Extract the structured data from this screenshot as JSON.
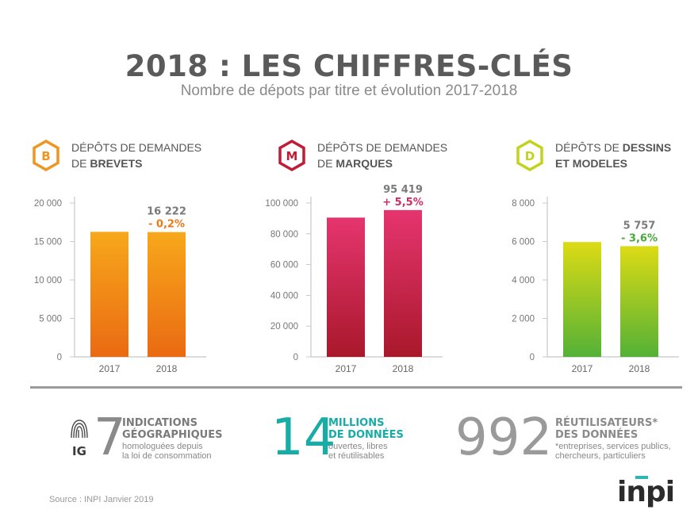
{
  "header": {
    "title": "2018 : LES CHIFFRES-CLÉS",
    "subtitle": "Nombre de dépots par titre et évolution 2017-2018"
  },
  "panels": [
    {
      "badge": "B",
      "line1_plain": "DÉPÔTS DE DEMANDES",
      "line2_plain": "DE ",
      "line2_bold": "BREVETS",
      "line1_bold": ""
    },
    {
      "badge": "M",
      "line1_plain": "DÉPÔTS DE DEMANDES",
      "line2_plain": "DE ",
      "line2_bold": "MARQUES",
      "line1_bold": ""
    },
    {
      "badge": "D",
      "line1_plain": "DÉPÔTS DE ",
      "line1_bold": "DESSINS",
      "line2_plain": "",
      "line2_bold": "ET MODELES"
    }
  ],
  "chart_data": [
    {
      "type": "bar",
      "categories": [
        "2017",
        "2018"
      ],
      "values": [
        16255,
        16222
      ],
      "ylim": [
        0,
        20000
      ],
      "yticks": [
        "0",
        "5 000",
        "10 000",
        "15 000",
        "20 000"
      ],
      "ytick_values": [
        0,
        5000,
        10000,
        15000,
        20000
      ],
      "value_label": "16 222",
      "change_label": "- 0,2%",
      "colors": {
        "top": "#f7a81b",
        "bottom": "#ea6a12",
        "change": "#ec7a17",
        "badge": "#f0951f"
      }
    },
    {
      "type": "bar",
      "categories": [
        "2017",
        "2018"
      ],
      "values": [
        90530,
        95419
      ],
      "ylim": [
        0,
        100000
      ],
      "yticks": [
        "0",
        "20 000",
        "40 000",
        "60 000",
        "80 000",
        "100 000"
      ],
      "ytick_values": [
        0,
        20000,
        40000,
        60000,
        80000,
        100000
      ],
      "value_label": "95 419",
      "change_label": "+ 5,5%",
      "colors": {
        "top": "#e5356f",
        "bottom": "#a9182b",
        "change": "#d62a66",
        "badge": "#c01c37"
      }
    },
    {
      "type": "bar",
      "categories": [
        "2017",
        "2018"
      ],
      "values": [
        5972,
        5757
      ],
      "ylim": [
        0,
        8000
      ],
      "yticks": [
        "0",
        "2 000",
        "4 000",
        "6 000",
        "8 000"
      ],
      "ytick_values": [
        0,
        2000,
        4000,
        6000,
        8000
      ],
      "value_label": "5 757",
      "change_label": "- 3,6%",
      "colors": {
        "top": "#dcdb14",
        "bottom": "#54b137",
        "change": "#46a83a",
        "badge": "#c3d31c"
      }
    }
  ],
  "stats": [
    {
      "number": "7",
      "title1": "INDICATIONS",
      "title2": "GÉOGRAPHIQUES",
      "sub1": "homologuées depuis",
      "sub2": "la loi de consommation",
      "sub3": "",
      "color": "#8a8a8a",
      "title_color": "#7a7a7a",
      "icon": "fingerprint-ig-icon",
      "icon_text": "IG"
    },
    {
      "number": "14",
      "title1": "MILLIONS",
      "title2": "DE DONNÉES",
      "sub1": "ouvertes, libres",
      "sub2": "et réutilisables",
      "sub3": "",
      "color": "#17aca5",
      "title_color": "#17aca5"
    },
    {
      "number": "992",
      "title1": "RÉUTILISATEURS*",
      "title2": "DES DONNÉES",
      "sub1": "*entreprises, services publics,",
      "sub2": "chercheurs, particuliers",
      "sub3": "",
      "color": "#9a9a9a",
      "title_color": "#8a8a8a"
    }
  ],
  "footer": {
    "source": "Source : INPI Janvier 2019",
    "logo": "inpi",
    "logo_color": "#2fb5b3"
  }
}
